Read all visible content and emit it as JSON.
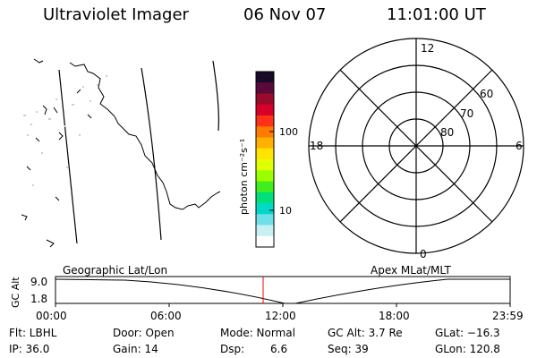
{
  "header": {
    "instrument": "Ultraviolet Imager",
    "date": "06 Nov 07",
    "time": "11:01:00 UT"
  },
  "colorbar": {
    "unit_label": "photon cm⁻²s⁻¹",
    "ticks": [
      "100",
      "10"
    ],
    "colors": [
      "#1a0a2a",
      "#5a0a3a",
      "#9a0a2a",
      "#d8002a",
      "#ff3018",
      "#ff7a00",
      "#ffb000",
      "#ffe400",
      "#e0ff00",
      "#9cff00",
      "#40ee20",
      "#00e07a",
      "#00d8c8",
      "#70e0e8",
      "#c8f0f4",
      "#ffffff"
    ]
  },
  "polar": {
    "mlt_labels": {
      "top": "12",
      "left": "18",
      "right": "6",
      "bottom": "0"
    },
    "lat_labels": [
      "60",
      "70",
      "80"
    ]
  },
  "timeline": {
    "left_label": "Geographic Lat/Lon",
    "right_label": "Apex MLat/MLT",
    "axis_label": "GC Alt",
    "y_ticks": [
      "9.0",
      "1.8"
    ],
    "x_ticks": [
      "00:00",
      "06:00",
      "12:00",
      "18:00",
      "23:59"
    ],
    "marker_color": "#ff0000"
  },
  "status": {
    "row1": {
      "flt": "Flt: LBHL",
      "door": "Door: Open",
      "mode": "Mode: Normal",
      "gcalt": "GC Alt: 3.7 Re",
      "glat": "GLat: −16.3"
    },
    "row2": {
      "ip": "IP: 36.0",
      "gain": "Gain: 14",
      "dsp_label": "Dsp:",
      "dsp_value": "6.6",
      "seq": "Seq: 39",
      "glon": "GLon: 120.8"
    }
  }
}
